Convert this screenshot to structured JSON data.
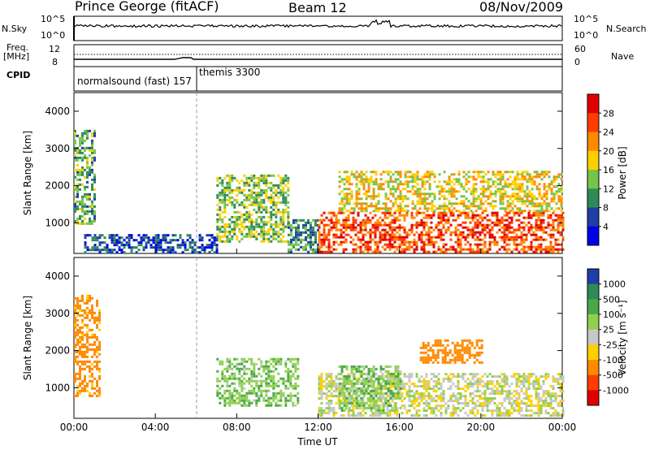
{
  "header": {
    "station": "Prince George (fitACF)",
    "beam": "Beam 12",
    "date": "08/Nov/2009"
  },
  "top_panels": {
    "nsky_label": "N.Sky",
    "nsky_ticks": [
      "10^5",
      "10^0"
    ],
    "nsearch_label": "N.Search",
    "nsearch_ticks": [
      "10^5",
      "10^0"
    ],
    "freq_label_1": "Freq.",
    "freq_label_2": "[MHz]",
    "freq_ticks": [
      "12",
      "8"
    ],
    "nave_label": "Nave",
    "nave_ticks": [
      "60",
      "0"
    ],
    "cpid_label": "CPID",
    "cpid_modes": [
      "normalsound (fast) 157",
      "themis 3300"
    ]
  },
  "chart_data": [
    {
      "type": "heatmap",
      "parameter": "Power",
      "colorbar_label": "Power [dB]",
      "colorbar_ticks": [
        "28",
        "24",
        "20",
        "16",
        "12",
        "8",
        "4"
      ],
      "colorbar_colors": [
        "#e00000",
        "#ff3c00",
        "#ff8a00",
        "#ffd000",
        "#77c44a",
        "#2e8b57",
        "#1f3ea8",
        "#0000e6"
      ],
      "ylabel": "Slant Range [km]",
      "ylim": [
        180,
        4500
      ],
      "yticks": [
        1000,
        2000,
        3000,
        4000
      ],
      "xlabel": "",
      "xlim": [
        "00:00",
        "24:00"
      ],
      "regions": [
        {
          "t": [
            0.0,
            1.0
          ],
          "r": [
            1000,
            3500
          ],
          "level": 12
        },
        {
          "t": [
            0.5,
            7.0
          ],
          "r": [
            180,
            700
          ],
          "level": 6
        },
        {
          "t": [
            7.0,
            10.5
          ],
          "r": [
            500,
            2300
          ],
          "level": 14
        },
        {
          "t": [
            10.5,
            12.0
          ],
          "r": [
            200,
            1100
          ],
          "level": 10
        },
        {
          "t": [
            12.0,
            24.0
          ],
          "r": [
            250,
            1300
          ],
          "level": 26
        },
        {
          "t": [
            13.0,
            24.0
          ],
          "r": [
            1300,
            2400
          ],
          "level": 18
        }
      ]
    },
    {
      "type": "heatmap",
      "parameter": "Velocity",
      "colorbar_label": "Velocity [m s⁻¹]",
      "colorbar_ticks": [
        "1000",
        "500",
        "100",
        "25",
        "-25",
        "-100",
        "-500",
        "-1000"
      ],
      "colorbar_colors": [
        "#1f3ea8",
        "#2e8b57",
        "#4aa84a",
        "#8fd14f",
        "#c8c8c8",
        "#ffd000",
        "#ff8a00",
        "#ff3c00",
        "#e00000"
      ],
      "ylabel": "Slant Range [km]",
      "ylim": [
        180,
        4500
      ],
      "yticks": [
        1000,
        2000,
        3000,
        4000
      ],
      "xlabel": "Time UT",
      "xticks": [
        "00:00",
        "04:00",
        "08:00",
        "12:00",
        "16:00",
        "20:00",
        "00:00"
      ],
      "xlim": [
        "00:00",
        "24:00"
      ],
      "regions": [
        {
          "t": [
            0.0,
            1.2
          ],
          "r": [
            800,
            3500
          ],
          "level": -150
        },
        {
          "t": [
            7.0,
            11.0
          ],
          "r": [
            500,
            1800
          ],
          "level": 80
        },
        {
          "t": [
            12.0,
            24.0
          ],
          "r": [
            250,
            1400
          ],
          "level": 0
        },
        {
          "t": [
            13.0,
            16.0
          ],
          "r": [
            400,
            1600
          ],
          "level": 80
        },
        {
          "t": [
            17.0,
            20.0
          ],
          "r": [
            1700,
            2300
          ],
          "level": -300
        }
      ]
    }
  ]
}
